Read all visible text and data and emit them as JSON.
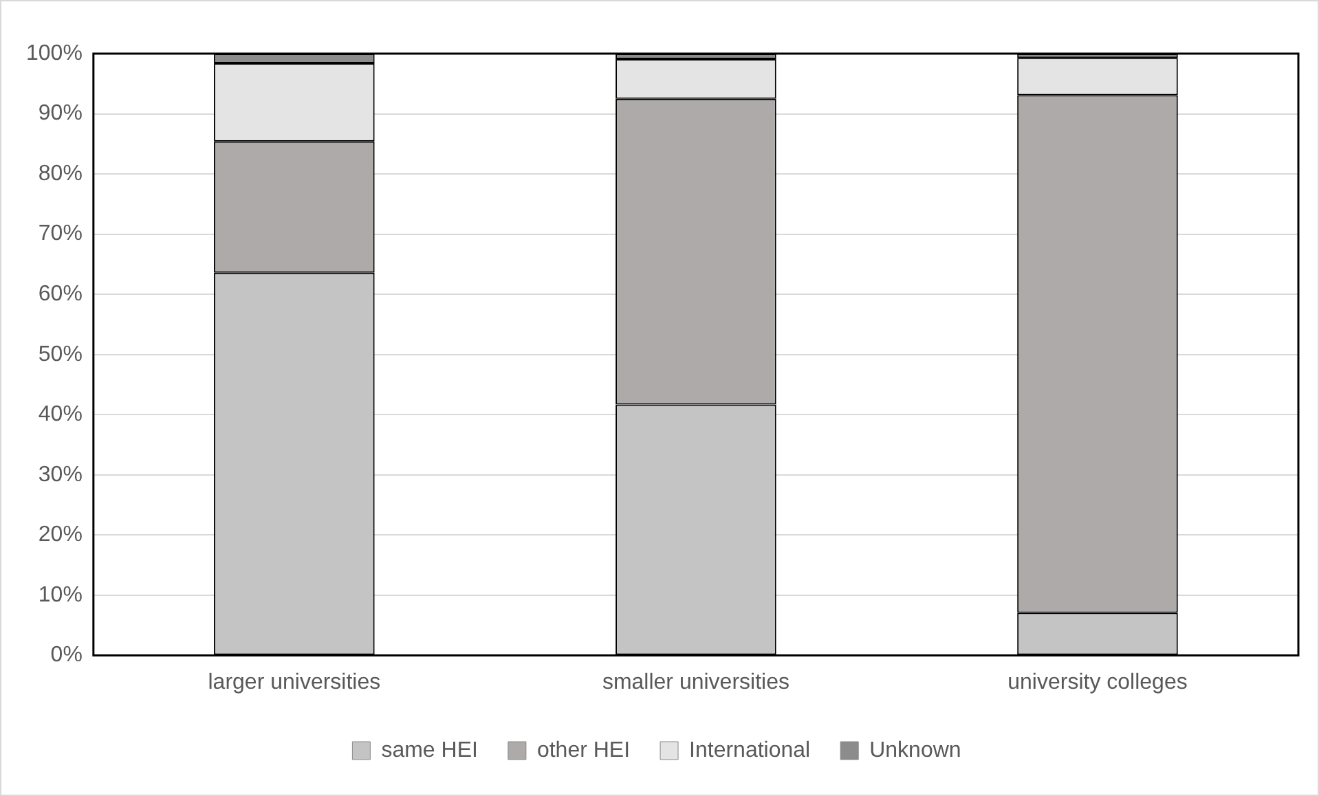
{
  "chart_data": {
    "type": "bar",
    "stacked": true,
    "categories": [
      "larger universities",
      "smaller universities",
      "university colleges"
    ],
    "series": [
      {
        "name": "same HEI",
        "color": "#c4c4c4",
        "values": [
          63.6,
          41.7,
          7.1
        ]
      },
      {
        "name": "other HEI",
        "color": "#aeaaaa",
        "values": [
          21.8,
          50.8,
          86.0
        ]
      },
      {
        "name": "International",
        "color": "#e4e4e4",
        "values": [
          13.0,
          6.6,
          6.2
        ]
      },
      {
        "name": "Unknown",
        "color": "#8c8c8c",
        "values": [
          1.6,
          0.9,
          0.7
        ]
      }
    ],
    "ylim": [
      0,
      100
    ],
    "yticks": [
      {
        "value": 0,
        "label": "0%"
      },
      {
        "value": 10,
        "label": "10%"
      },
      {
        "value": 20,
        "label": "20%"
      },
      {
        "value": 30,
        "label": "30%"
      },
      {
        "value": 40,
        "label": "40%"
      },
      {
        "value": 50,
        "label": "50%"
      },
      {
        "value": 60,
        "label": "60%"
      },
      {
        "value": 70,
        "label": "70%"
      },
      {
        "value": 80,
        "label": "80%"
      },
      {
        "value": 90,
        "label": "90%"
      },
      {
        "value": 100,
        "label": "100%"
      }
    ],
    "grid": "y",
    "legend": "bottom"
  }
}
